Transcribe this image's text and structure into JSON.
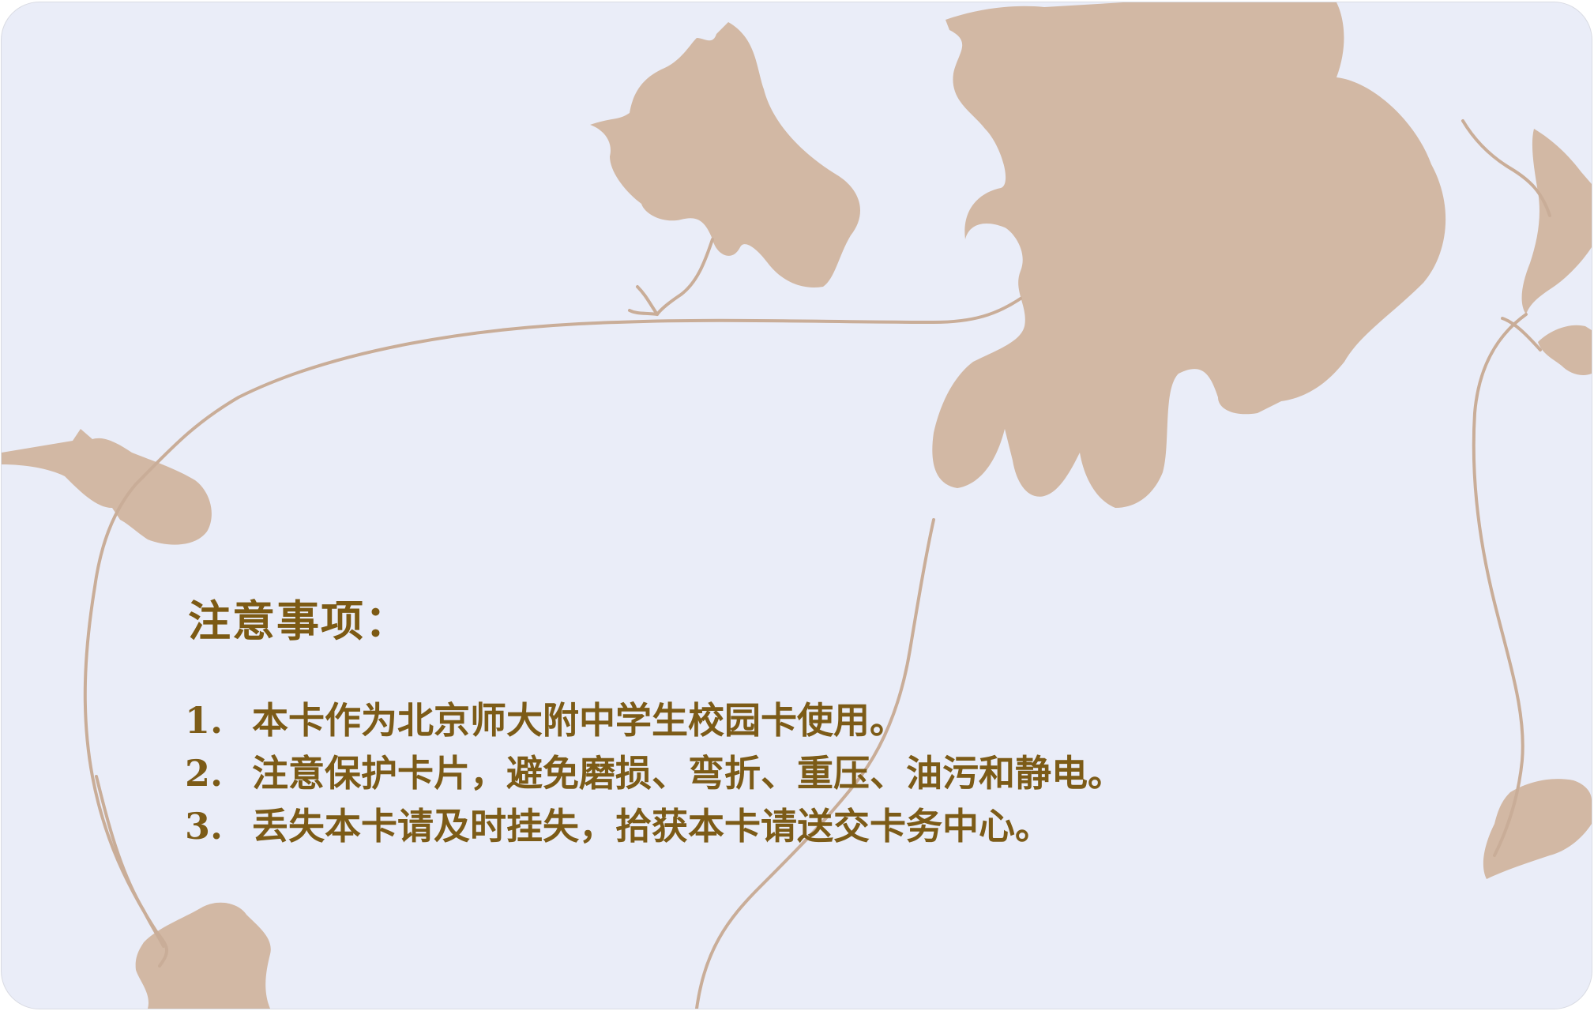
{
  "card": {
    "title": "注意事项：",
    "items": [
      {
        "number": "1.",
        "text": "本卡作为北京师大附中学生校园卡使用。"
      },
      {
        "number": "2.",
        "text": "注意保护卡片，避免磨损、弯折、重压、油污和静电。"
      },
      {
        "number": "3.",
        "text": "丢失本卡请及时挂失，拾获本卡请送交卡务中心。"
      }
    ]
  },
  "colors": {
    "background": "#eaedf8",
    "flower": "#d2b8a4",
    "vine": "#c9ad98",
    "text": "#7c5b17"
  },
  "decoration": {
    "motif": "flower-vine-silhouette"
  }
}
